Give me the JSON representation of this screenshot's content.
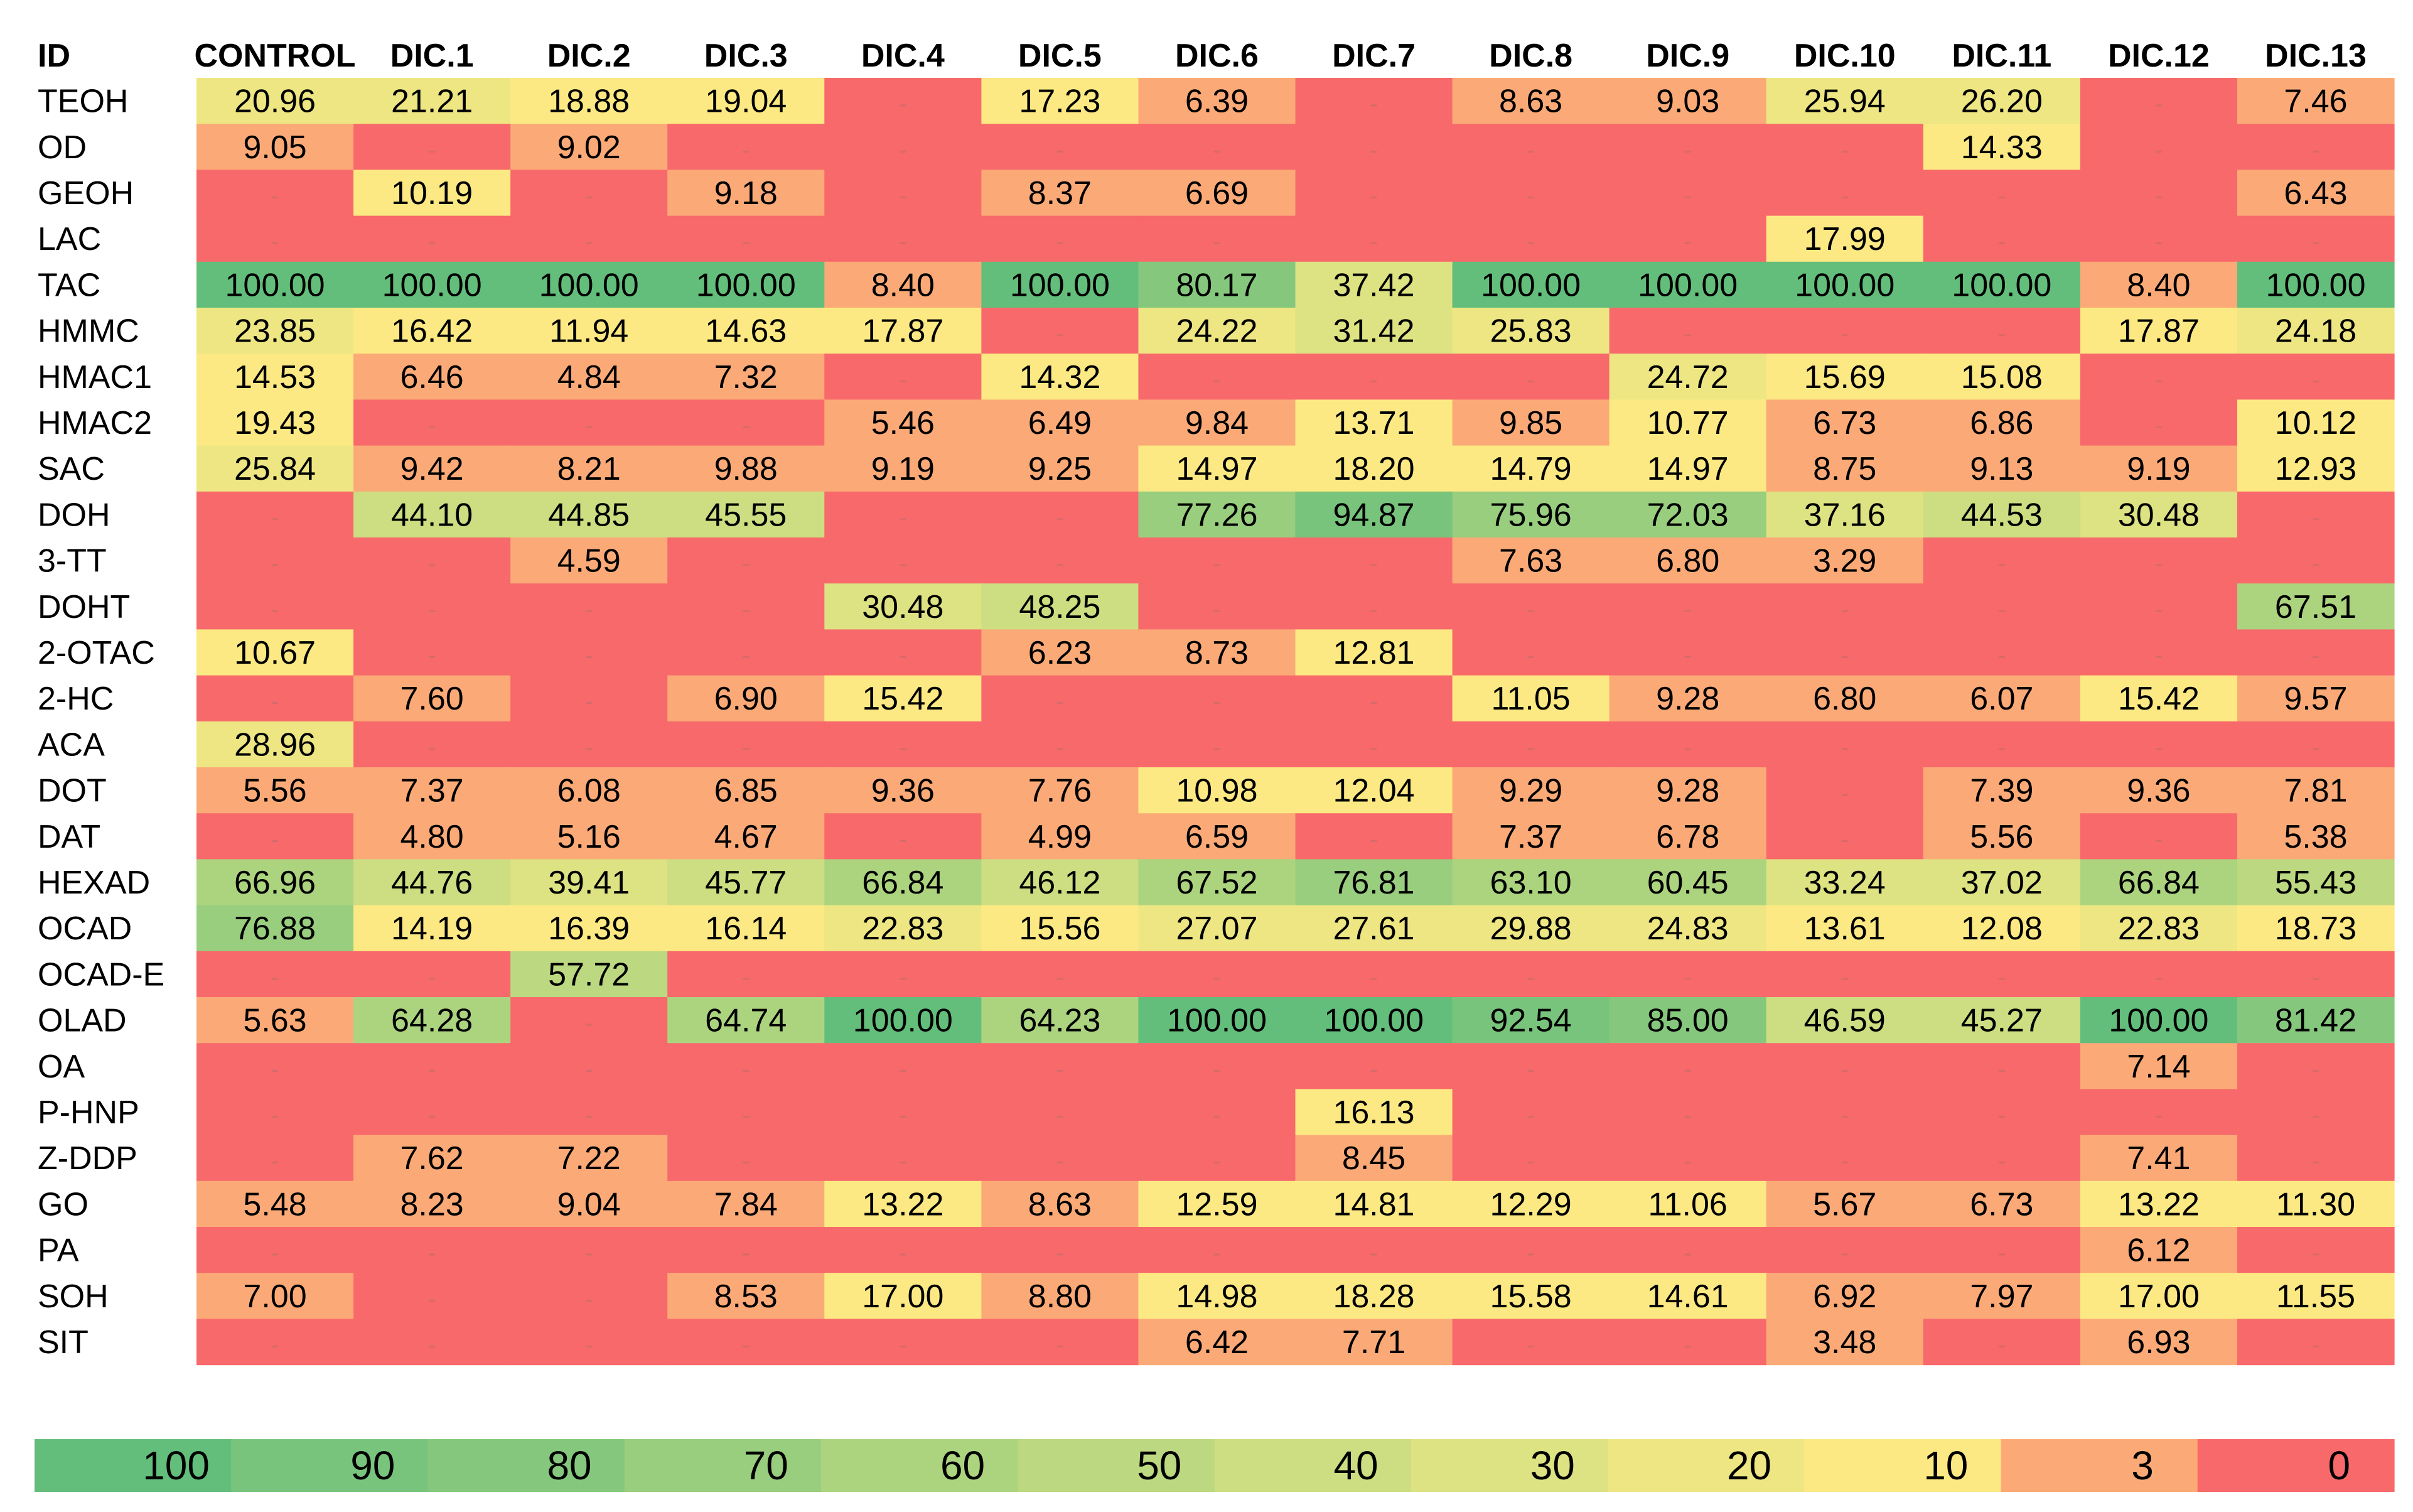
{
  "chart_data": {
    "type": "heatmap",
    "corner_label": "ID",
    "columns": [
      "CONTROL",
      "DIC.1",
      "DIC.2",
      "DIC.3",
      "DIC.4",
      "DIC.5",
      "DIC.6",
      "DIC.7",
      "DIC.8",
      "DIC.9",
      "DIC.10",
      "DIC.11",
      "DIC.12",
      "DIC.13"
    ],
    "empty_symbol": "-",
    "rows": [
      {
        "id": "TEOH",
        "values": [
          "20.96",
          "21.21",
          "18.88",
          "19.04",
          null,
          "17.23",
          "6.39",
          null,
          "8.63",
          "9.03",
          "25.94",
          "26.20",
          null,
          "7.46"
        ]
      },
      {
        "id": "OD",
        "values": [
          "9.05",
          null,
          "9.02",
          null,
          null,
          null,
          null,
          null,
          null,
          null,
          null,
          "14.33",
          null,
          null
        ]
      },
      {
        "id": "GEOH",
        "values": [
          null,
          "10.19",
          null,
          "9.18",
          null,
          "8.37",
          "6.69",
          null,
          null,
          null,
          null,
          null,
          null,
          "6.43"
        ]
      },
      {
        "id": "LAC",
        "values": [
          null,
          null,
          null,
          null,
          null,
          null,
          null,
          null,
          null,
          null,
          "17.99",
          null,
          null,
          null
        ]
      },
      {
        "id": "TAC",
        "values": [
          "100.00",
          "100.00",
          "100.00",
          "100.00",
          "8.40",
          "100.00",
          "80.17",
          "37.42",
          "100.00",
          "100.00",
          "100.00",
          "100.00",
          "8.40",
          "100.00"
        ]
      },
      {
        "id": "HMMC",
        "values": [
          "23.85",
          "16.42",
          "11.94",
          "14.63",
          "17.87",
          null,
          "24.22",
          "31.42",
          "25.83",
          null,
          null,
          null,
          "17.87",
          "24.18"
        ]
      },
      {
        "id": "HMAC1",
        "values": [
          "14.53",
          "6.46",
          "4.84",
          "7.32",
          null,
          "14.32",
          null,
          null,
          null,
          "24.72",
          "15.69",
          "15.08",
          null,
          null
        ]
      },
      {
        "id": "HMAC2",
        "values": [
          "19.43",
          null,
          null,
          null,
          "5.46",
          "6.49",
          "9.84",
          "13.71",
          "9.85",
          "10.77",
          "6.73",
          "6.86",
          null,
          "10.12"
        ]
      },
      {
        "id": "SAC",
        "values": [
          "25.84",
          "9.42",
          "8.21",
          "9.88",
          "9.19",
          "9.25",
          "14.97",
          "18.20",
          "14.79",
          "14.97",
          "8.75",
          "9.13",
          "9.19",
          "12.93"
        ]
      },
      {
        "id": "DOH",
        "values": [
          null,
          "44.10",
          "44.85",
          "45.55",
          null,
          null,
          "77.26",
          "94.87",
          "75.96",
          "72.03",
          "37.16",
          "44.53",
          "30.48",
          null
        ]
      },
      {
        "id": "3-TT",
        "values": [
          null,
          null,
          "4.59",
          null,
          null,
          null,
          null,
          null,
          "7.63",
          "6.80",
          "3.29",
          null,
          null,
          null
        ]
      },
      {
        "id": "DOHT",
        "values": [
          null,
          null,
          null,
          null,
          "30.48",
          "48.25",
          null,
          null,
          null,
          null,
          null,
          null,
          null,
          "67.51"
        ]
      },
      {
        "id": "2-OTAC",
        "values": [
          "10.67",
          null,
          null,
          null,
          null,
          "6.23",
          "8.73",
          "12.81",
          null,
          null,
          null,
          null,
          null,
          null
        ]
      },
      {
        "id": "2-HC",
        "values": [
          null,
          "7.60",
          null,
          "6.90",
          "15.42",
          null,
          null,
          null,
          "11.05",
          "9.28",
          "6.80",
          "6.07",
          "15.42",
          "9.57"
        ]
      },
      {
        "id": "ACA",
        "values": [
          "28.96",
          null,
          null,
          null,
          null,
          null,
          null,
          null,
          null,
          null,
          null,
          null,
          null,
          null
        ]
      },
      {
        "id": "DOT",
        "values": [
          "5.56",
          "7.37",
          "6.08",
          "6.85",
          "9.36",
          "7.76",
          "10.98",
          "12.04",
          "9.29",
          "9.28",
          null,
          "7.39",
          "9.36",
          "7.81"
        ]
      },
      {
        "id": "DAT",
        "values": [
          null,
          "4.80",
          "5.16",
          "4.67",
          null,
          "4.99",
          "6.59",
          null,
          "7.37",
          "6.78",
          null,
          "5.56",
          null,
          "5.38"
        ]
      },
      {
        "id": "HEXAD",
        "values": [
          "66.96",
          "44.76",
          "39.41",
          "45.77",
          "66.84",
          "46.12",
          "67.52",
          "76.81",
          "63.10",
          "60.45",
          "33.24",
          "37.02",
          "66.84",
          "55.43"
        ]
      },
      {
        "id": "OCAD",
        "values": [
          "76.88",
          "14.19",
          "16.39",
          "16.14",
          "22.83",
          "15.56",
          "27.07",
          "27.61",
          "29.88",
          "24.83",
          "13.61",
          "12.08",
          "22.83",
          "18.73"
        ]
      },
      {
        "id": "OCAD-E",
        "values": [
          null,
          null,
          "57.72",
          null,
          null,
          null,
          null,
          null,
          null,
          null,
          null,
          null,
          null,
          null
        ]
      },
      {
        "id": "OLAD",
        "values": [
          "5.63",
          "64.28",
          null,
          "64.74",
          "100.00",
          "64.23",
          "100.00",
          "100.00",
          "92.54",
          "85.00",
          "46.59",
          "45.27",
          "100.00",
          "81.42"
        ]
      },
      {
        "id": "OA",
        "values": [
          null,
          null,
          null,
          null,
          null,
          null,
          null,
          null,
          null,
          null,
          null,
          null,
          "7.14",
          null
        ]
      },
      {
        "id": "P-HNP",
        "values": [
          null,
          null,
          null,
          null,
          null,
          null,
          null,
          "16.13",
          null,
          null,
          null,
          null,
          null,
          null
        ]
      },
      {
        "id": "Z-DDP",
        "values": [
          null,
          "7.62",
          "7.22",
          null,
          null,
          null,
          null,
          "8.45",
          null,
          null,
          null,
          null,
          "7.41",
          null
        ]
      },
      {
        "id": "GO",
        "values": [
          "5.48",
          "8.23",
          "9.04",
          "7.84",
          "13.22",
          "8.63",
          "12.59",
          "14.81",
          "12.29",
          "11.06",
          "5.67",
          "6.73",
          "13.22",
          "11.30"
        ]
      },
      {
        "id": "PA",
        "values": [
          null,
          null,
          null,
          null,
          null,
          null,
          null,
          null,
          null,
          null,
          null,
          null,
          "6.12",
          null
        ]
      },
      {
        "id": "SOH",
        "values": [
          "7.00",
          null,
          null,
          "8.53",
          "17.00",
          "8.80",
          "14.98",
          "18.28",
          "15.58",
          "14.61",
          "6.92",
          "7.97",
          "17.00",
          "11.55"
        ]
      },
      {
        "id": "SIT",
        "values": [
          null,
          null,
          null,
          null,
          null,
          null,
          "6.42",
          "7.71",
          null,
          null,
          "3.48",
          null,
          "6.93",
          null
        ]
      }
    ],
    "color_scale": [
      {
        "label": "100",
        "value": 100,
        "color": "#63BE7B"
      },
      {
        "label": "90",
        "value": 90,
        "color": "#79C47C"
      },
      {
        "label": "80",
        "value": 80,
        "color": "#85C87D"
      },
      {
        "label": "70",
        "value": 70,
        "color": "#98CE7E"
      },
      {
        "label": "60",
        "value": 60,
        "color": "#ACD47F"
      },
      {
        "label": "50",
        "value": 50,
        "color": "#BCD880"
      },
      {
        "label": "40",
        "value": 40,
        "color": "#CDDD81"
      },
      {
        "label": "30",
        "value": 30,
        "color": "#DDE282"
      },
      {
        "label": "20",
        "value": 20,
        "color": "#EDE683"
      },
      {
        "label": "10",
        "value": 10,
        "color": "#FCE983"
      },
      {
        "label": "3",
        "value": 3,
        "color": "#FBAA77"
      },
      {
        "label": "0",
        "value": 0,
        "color": "#F8696B"
      }
    ]
  }
}
